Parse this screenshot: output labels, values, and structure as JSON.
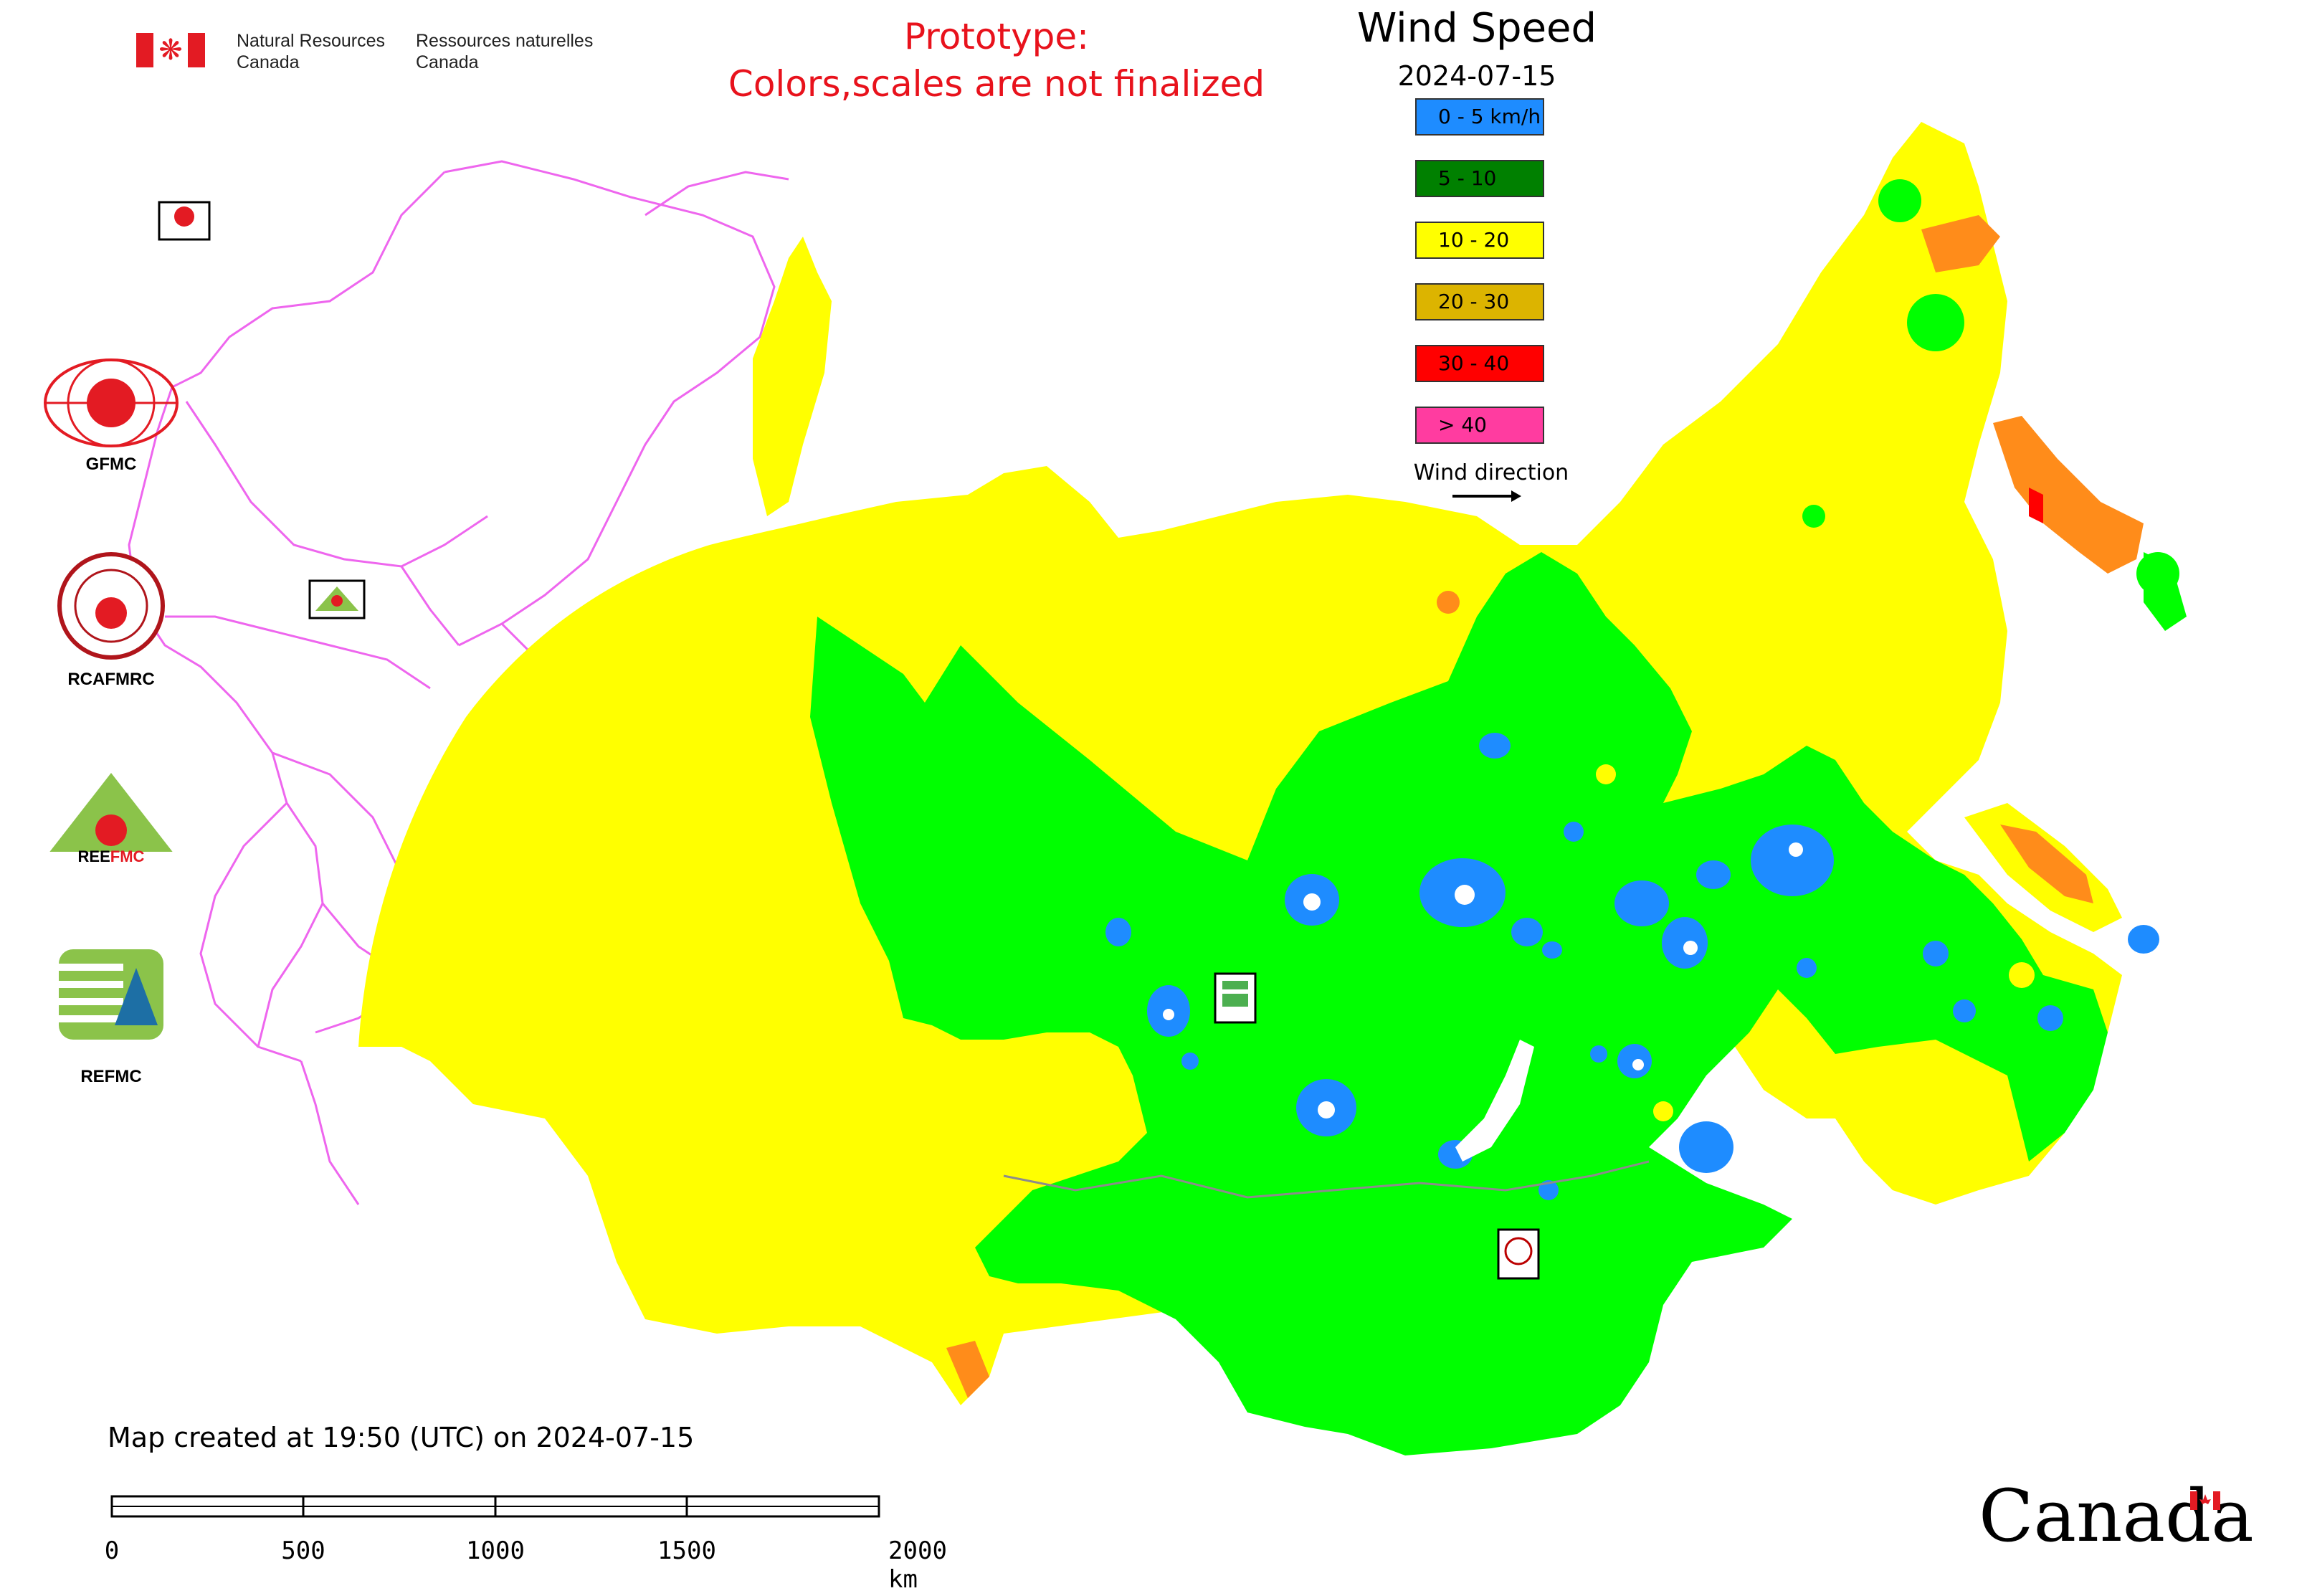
{
  "header": {
    "nrc_en": "Natural Resources\nCanada",
    "nrc_fr": "Ressources naturelles\nCanada",
    "prototype_line1": "Prototype:",
    "prototype_line2": "Colors,scales are not finalized",
    "title": "Wind Speed",
    "date": "2024-07-15"
  },
  "legend": {
    "items": [
      {
        "label": "0 - 5 km/h",
        "color": "#1e8cff"
      },
      {
        "label": "5 - 10",
        "color": "#008000"
      },
      {
        "label": "10 - 20",
        "color": "#ffff00"
      },
      {
        "label": "20 - 30",
        "color": "#dcb400"
      },
      {
        "label": "30 - 40",
        "color": "#ff0000"
      },
      {
        "label": "> 40",
        "color": "#ff3ca0"
      }
    ],
    "wind_direction_label": "Wind direction"
  },
  "logos": {
    "gfmc": "GFMC",
    "rcafmrc": "RCAFMRC",
    "reefmc": "REEFMC",
    "refmc": "REFMC"
  },
  "footer": {
    "created": "Map created at 19:50 (UTC) on 2024-07-15",
    "scale_labels": [
      "0",
      "500",
      "1000",
      "1500",
      "2000 km"
    ],
    "wordmark": "Canada"
  },
  "map_colors": {
    "low": "#1e8cff",
    "green": "#00ff00",
    "yellow": "#ffff00",
    "orange": "#ff8c1a",
    "red": "#ff0000",
    "border": "#ee66ee"
  }
}
